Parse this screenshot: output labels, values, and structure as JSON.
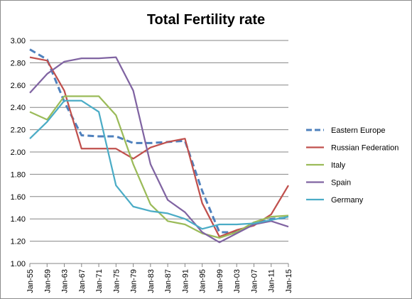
{
  "chart_data": {
    "type": "line",
    "title": "Total Fertility rate",
    "xlabel": "",
    "ylabel": "",
    "categories": [
      "Jan-55",
      "Jan-59",
      "Jan-63",
      "Jan-67",
      "Jan-71",
      "Jan-75",
      "Jan-79",
      "Jan-83",
      "Jan-87",
      "Jan-91",
      "Jan-95",
      "Jan-99",
      "Jan-03",
      "Jan-07",
      "Jan-11",
      "Jan-15"
    ],
    "ylim": [
      1.0,
      3.0
    ],
    "yticks": [
      "1.00",
      "1.20",
      "1.40",
      "1.60",
      "1.80",
      "2.00",
      "2.20",
      "2.40",
      "2.60",
      "2.80",
      "3.00"
    ],
    "grid": "horizontal",
    "legend_position": "right",
    "series": [
      {
        "name": "Eastern Europe",
        "color": "#4f81bd",
        "dashed": true,
        "values": [
          2.92,
          2.83,
          2.45,
          2.15,
          2.14,
          2.14,
          2.08,
          2.08,
          2.09,
          2.1,
          1.65,
          1.28,
          1.28,
          1.35,
          1.4,
          1.41
        ]
      },
      {
        "name": "Russian Federation",
        "color": "#c0504d",
        "dashed": false,
        "values": [
          2.85,
          2.82,
          2.55,
          2.03,
          2.03,
          2.03,
          1.94,
          2.04,
          2.09,
          2.12,
          1.54,
          1.24,
          1.3,
          1.34,
          1.44,
          1.7
        ]
      },
      {
        "name": "Italy",
        "color": "#9bbb59",
        "dashed": false,
        "values": [
          2.36,
          2.29,
          2.5,
          2.5,
          2.5,
          2.33,
          1.89,
          1.53,
          1.38,
          1.35,
          1.27,
          1.23,
          1.28,
          1.37,
          1.42,
          1.43
        ]
      },
      {
        "name": "Spain",
        "color": "#8064a2",
        "dashed": false,
        "values": [
          2.53,
          2.7,
          2.81,
          2.84,
          2.84,
          2.85,
          2.55,
          1.89,
          1.57,
          1.46,
          1.28,
          1.19,
          1.27,
          1.35,
          1.38,
          1.33
        ]
      },
      {
        "name": "Germany",
        "color": "#4bacc6",
        "dashed": false,
        "values": [
          2.12,
          2.27,
          2.46,
          2.46,
          2.36,
          1.7,
          1.51,
          1.47,
          1.45,
          1.4,
          1.31,
          1.35,
          1.35,
          1.36,
          1.39,
          1.42
        ]
      }
    ]
  }
}
